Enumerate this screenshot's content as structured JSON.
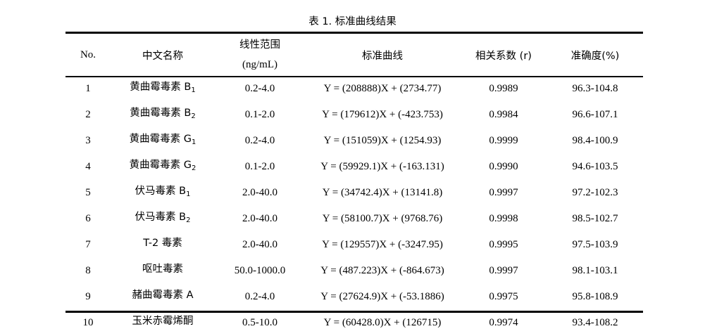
{
  "caption": "表 1. 标准曲线结果",
  "headers": {
    "no": "No.",
    "name": "中文名称",
    "range_line1": "线性范围",
    "range_line2": "(ng/mL)",
    "curve": "标准曲线",
    "coef": "相关系数 (r)",
    "accuracy": "准确度(%)"
  },
  "rows": [
    {
      "no": "1",
      "name": "黄曲霉毒素 B",
      "sub": "1",
      "range": "0.2-4.0",
      "curve": "Y = (208888)X + (2734.77)",
      "r": "0.9989",
      "acc": "96.3-104.8"
    },
    {
      "no": "2",
      "name": "黄曲霉毒素 B",
      "sub": "2",
      "range": "0.1-2.0",
      "curve": "Y = (179612)X + (-423.753)",
      "r": "0.9984",
      "acc": "96.6-107.1"
    },
    {
      "no": "3",
      "name": "黄曲霉毒素 G",
      "sub": "1",
      "range": "0.2-4.0",
      "curve": "Y = (151059)X + (1254.93)",
      "r": "0.9999",
      "acc": "98.4-100.9"
    },
    {
      "no": "4",
      "name": "黄曲霉毒素 G",
      "sub": "2",
      "range": "0.1-2.0",
      "curve": "Y = (59929.1)X + (-163.131)",
      "r": "0.9990",
      "acc": "94.6-103.5"
    },
    {
      "no": "5",
      "name": "伏马毒素 B",
      "sub": "1",
      "range": "2.0-40.0",
      "curve": "Y = (34742.4)X + (13141.8)",
      "r": "0.9997",
      "acc": "97.2-102.3"
    },
    {
      "no": "6",
      "name": "伏马毒素 B",
      "sub": "2",
      "range": "2.0-40.0",
      "curve": "Y = (58100.7)X + (9768.76)",
      "r": "0.9998",
      "acc": "98.5-102.7"
    },
    {
      "no": "7",
      "name": "T-2 毒素",
      "sub": "",
      "range": "2.0-40.0",
      "curve": "Y = (129557)X + (-3247.95)",
      "r": "0.9995",
      "acc": "97.5-103.9"
    },
    {
      "no": "8",
      "name": "呕吐毒素",
      "sub": "",
      "range": "50.0-1000.0",
      "curve": "Y = (487.223)X + (-864.673)",
      "r": "0.9997",
      "acc": "98.1-103.1"
    },
    {
      "no": "9",
      "name": "赭曲霉毒素 A",
      "sub": "",
      "range": "0.2-4.0",
      "curve": "Y = (27624.9)X + (-53.1886)",
      "r": "0.9975",
      "acc": "95.8-108.9"
    },
    {
      "no": "10",
      "name": "玉米赤霉烯酮",
      "sub": "",
      "range": "0.5-10.0",
      "curve": "Y = (60428.0)X + (126715)",
      "r": "0.9974",
      "acc": "93.4-108.2"
    }
  ]
}
